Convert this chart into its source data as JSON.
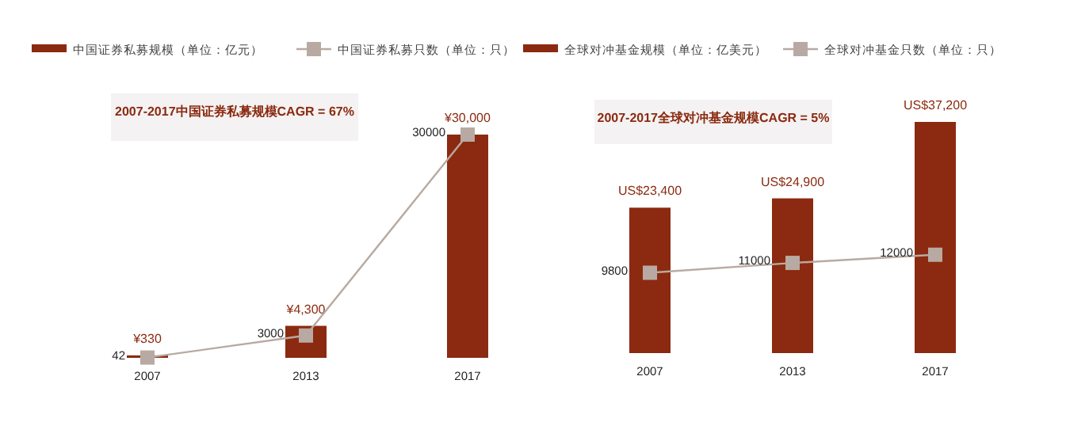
{
  "chart_data": [
    {
      "type": "bar",
      "categories": [
        "2007",
        "2013",
        "2017"
      ],
      "legend": "top",
      "tick_labels": "x",
      "annotations": [
        "2007-2017中国证券私募规模CAGR = 67%"
      ],
      "series": [
        {
          "name": "中国证券私募规模（单位：亿元）",
          "color": "#8b2a10",
          "values": [
            330,
            4300,
            30000
          ],
          "value_labels": [
            "¥330",
            "¥4,300",
            "¥30,000"
          ]
        },
        {
          "name": "中国证券私募只数（单位：只）",
          "type": "line",
          "marker": "square",
          "color": "#b8aaa2",
          "values": [
            42,
            3000,
            30000
          ],
          "value_labels": [
            "42",
            "3000",
            "30000"
          ]
        }
      ]
    },
    {
      "type": "bar",
      "categories": [
        "2007",
        "2013",
        "2017"
      ],
      "legend": "top",
      "tick_labels": "x",
      "annotations": [
        "2007-2017全球对冲基金规模CAGR = 5%"
      ],
      "series": [
        {
          "name": "全球对冲基金规模（单位：亿美元）",
          "color": "#8b2a10",
          "values": [
            23400,
            24900,
            37200
          ],
          "value_labels": [
            "US$23,400",
            "US$24,900",
            "US$37,200"
          ]
        },
        {
          "name": "全球对冲基金只数（单位：只）",
          "type": "line",
          "marker": "square",
          "axis": "y2",
          "color": "#b8aaa2",
          "values": [
            9800,
            11000,
            12000
          ],
          "value_labels": [
            "9800",
            "11000",
            "12000"
          ]
        }
      ]
    }
  ]
}
